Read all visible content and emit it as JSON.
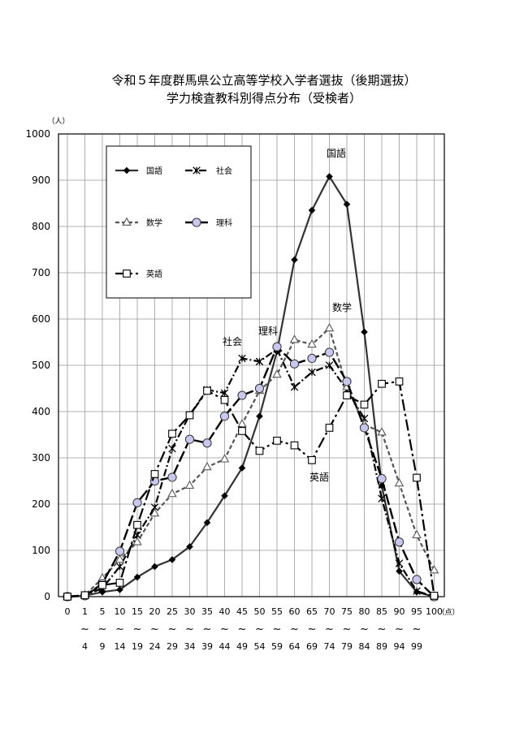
{
  "title": {
    "line1": "令和５年度群馬県公立高等学校入学者選抜（後期選抜）",
    "line2": "学力検査教科別得点分布（受検者）"
  },
  "chart_data": {
    "type": "line",
    "ylabel": "（人）",
    "xunit": "（点）",
    "ylim": [
      0,
      1000
    ],
    "yticks": [
      0,
      100,
      200,
      300,
      400,
      500,
      600,
      700,
      800,
      900,
      1000
    ],
    "grid": true,
    "legend_position": "top-left",
    "categories": [
      {
        "from": "0",
        "sep": "",
        "to": ""
      },
      {
        "from": "1",
        "sep": "~",
        "to": "4"
      },
      {
        "from": "5",
        "sep": "~",
        "to": "9"
      },
      {
        "from": "10",
        "sep": "~",
        "to": "14"
      },
      {
        "from": "15",
        "sep": "~",
        "to": "19"
      },
      {
        "from": "20",
        "sep": "~",
        "to": "24"
      },
      {
        "from": "25",
        "sep": "~",
        "to": "29"
      },
      {
        "from": "30",
        "sep": "~",
        "to": "34"
      },
      {
        "from": "35",
        "sep": "~",
        "to": "39"
      },
      {
        "from": "40",
        "sep": "~",
        "to": "44"
      },
      {
        "from": "45",
        "sep": "~",
        "to": "49"
      },
      {
        "from": "50",
        "sep": "~",
        "to": "54"
      },
      {
        "from": "55",
        "sep": "~",
        "to": "59"
      },
      {
        "from": "60",
        "sep": "~",
        "to": "64"
      },
      {
        "from": "65",
        "sep": "~",
        "to": "69"
      },
      {
        "from": "70",
        "sep": "~",
        "to": "74"
      },
      {
        "from": "75",
        "sep": "~",
        "to": "79"
      },
      {
        "from": "80",
        "sep": "~",
        "to": "84"
      },
      {
        "from": "85",
        "sep": "~",
        "to": "89"
      },
      {
        "from": "90",
        "sep": "~",
        "to": "94"
      },
      {
        "from": "95",
        "sep": "~",
        "to": "99"
      },
      {
        "from": "100",
        "sep": "",
        "to": ""
      }
    ],
    "series": [
      {
        "name": "国語",
        "marker": "diamond",
        "dash": "",
        "color": "#333333",
        "width": 2.2,
        "values": [
          0,
          2,
          10,
          15,
          42,
          65,
          80,
          108,
          160,
          218,
          278,
          390,
          530,
          728,
          835,
          908,
          848,
          572,
          240,
          55,
          10,
          0
        ]
      },
      {
        "name": "社会",
        "marker": "x",
        "dash": "9,3,2,3",
        "color": "#000000",
        "width": 2.2,
        "values": [
          0,
          3,
          18,
          65,
          133,
          193,
          320,
          393,
          447,
          440,
          515,
          508,
          535,
          453,
          485,
          500,
          447,
          385,
          212,
          72,
          12,
          0
        ]
      },
      {
        "name": "数学",
        "marker": "triangle",
        "dash": "5,3",
        "color": "#555555",
        "width": 2.2,
        "values": [
          0,
          3,
          40,
          80,
          118,
          180,
          222,
          240,
          280,
          297,
          373,
          445,
          480,
          555,
          545,
          580,
          453,
          372,
          355,
          245,
          133,
          57
        ]
      },
      {
        "name": "理科",
        "marker": "circle",
        "dash": "14,4",
        "color": "#000000",
        "width": 2.4,
        "values": [
          0,
          2,
          28,
          98,
          203,
          250,
          258,
          340,
          332,
          390,
          435,
          450,
          540,
          503,
          515,
          528,
          465,
          365,
          255,
          118,
          37,
          0
        ]
      },
      {
        "name": "英語",
        "marker": "square",
        "dash": "14,4,3,4",
        "color": "#000000",
        "width": 2.2,
        "values": [
          0,
          3,
          25,
          30,
          155,
          265,
          352,
          392,
          445,
          425,
          358,
          315,
          337,
          327,
          295,
          365,
          435,
          415,
          460,
          465,
          257,
          2
        ]
      }
    ],
    "annotations": [
      {
        "series": 0,
        "text": "国語"
      },
      {
        "series": 1,
        "text": "社会"
      },
      {
        "series": 2,
        "text": "数学"
      },
      {
        "series": 3,
        "text": "理科"
      },
      {
        "series": 4,
        "text": "英語"
      }
    ]
  }
}
